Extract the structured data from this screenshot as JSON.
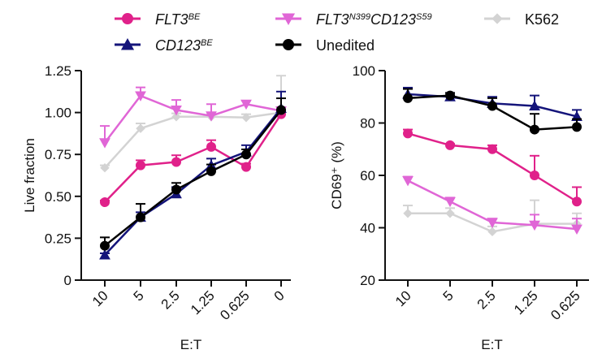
{
  "legend": [
    {
      "key": "flt3",
      "base": "FLT3",
      "sup": "BE",
      "italic": true,
      "color": "#e0218a",
      "marker": "circle"
    },
    {
      "key": "double",
      "base": "FLT3",
      "sup": "N399",
      "base2": "CD123",
      "sup2": "S59",
      "italic": true,
      "color": "#e066d6",
      "marker": "tri-down"
    },
    {
      "key": "k562",
      "base": "K562",
      "italic": false,
      "color": "#d3d3d3",
      "marker": "diamond"
    },
    {
      "key": "cd123",
      "base": "CD123",
      "sup": "BE",
      "italic": true,
      "color": "#14147a",
      "marker": "tri-up"
    },
    {
      "key": "unedited",
      "base": "Unedited",
      "italic": false,
      "color": "#000000",
      "marker": "circle"
    }
  ],
  "chart_data": [
    {
      "type": "line",
      "xlabel": "E:T",
      "ylabel": "Live fraction",
      "categories": [
        "10",
        "5",
        "2.5",
        "1.25",
        "0.625",
        "0"
      ],
      "ylim": [
        0,
        1.25
      ],
      "yticks": [
        "0",
        "0.25",
        "0.50",
        "0.75",
        "1.00",
        "1.25"
      ],
      "series": [
        {
          "name": "K562",
          "key": "k562",
          "values": [
            0.67,
            0.905,
            0.975,
            0.975,
            0.97,
            1.0
          ],
          "err": [
            0.015,
            0.03,
            0.02,
            0.015,
            0.02,
            0.22
          ]
        },
        {
          "name": "FLT3N399CD123S59",
          "key": "double",
          "values": [
            0.82,
            1.1,
            1.015,
            0.98,
            1.05,
            1.01
          ],
          "err": [
            0.1,
            0.05,
            0.06,
            0.07,
            0.02,
            0.02
          ]
        },
        {
          "name": "FLT3BE",
          "key": "flt3",
          "values": [
            0.465,
            0.685,
            0.705,
            0.795,
            0.675,
            0.99
          ],
          "err": [
            0.01,
            0.03,
            0.04,
            0.04,
            0.02,
            0.02
          ]
        },
        {
          "name": "CD123BE",
          "key": "cd123",
          "values": [
            0.15,
            0.375,
            0.515,
            0.685,
            0.765,
            1.025
          ],
          "err": [
            0.01,
            0.03,
            0.04,
            0.04,
            0.04,
            0.1
          ]
        },
        {
          "name": "Unedited",
          "key": "unedited",
          "values": [
            0.205,
            0.375,
            0.54,
            0.65,
            0.75,
            1.015
          ],
          "err": [
            0.05,
            0.08,
            0.04,
            0.04,
            0.03,
            0.07
          ]
        }
      ]
    },
    {
      "type": "line",
      "xlabel": "E:T",
      "ylabel": "CD69⁺ (%)",
      "categories": [
        "10",
        "5",
        "2.5",
        "1.25",
        "0.625"
      ],
      "ylim": [
        20,
        100
      ],
      "yticks": [
        "20",
        "40",
        "60",
        "80",
        "100"
      ],
      "series": [
        {
          "name": "K562",
          "key": "k562",
          "values": [
            45.5,
            45.5,
            38.5,
            41.5,
            41.5
          ],
          "err": [
            3,
            2,
            2,
            9,
            4
          ]
        },
        {
          "name": "FLT3N399CD123S59",
          "key": "double",
          "values": [
            58,
            50,
            42,
            41,
            39.5
          ],
          "err": [
            1.5,
            1.5,
            1.5,
            4,
            4
          ]
        },
        {
          "name": "FLT3BE",
          "key": "flt3",
          "values": [
            76,
            71.5,
            70,
            60,
            50
          ],
          "err": [
            1.5,
            0.5,
            1.5,
            7.5,
            5.5
          ]
        },
        {
          "name": "CD123BE",
          "key": "cd123",
          "values": [
            91,
            90,
            87.5,
            86.5,
            82.5
          ],
          "err": [
            2.5,
            1.5,
            2.5,
            4,
            2.5
          ]
        },
        {
          "name": "Unedited",
          "key": "unedited",
          "values": [
            89.5,
            90.5,
            86.5,
            77.5,
            78.5
          ],
          "err": [
            3.5,
            1,
            3,
            6,
            3
          ]
        }
      ]
    }
  ]
}
